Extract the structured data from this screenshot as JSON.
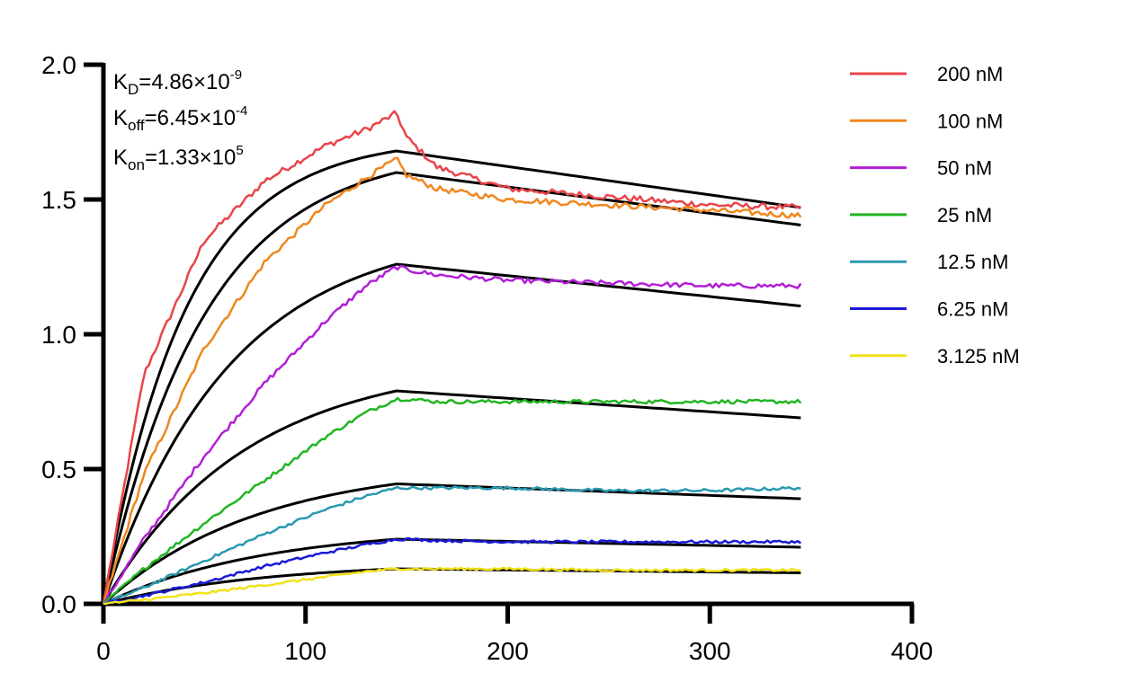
{
  "chart_data": {
    "type": "line",
    "title": "",
    "xlabel": "",
    "ylabel": "",
    "xlim": [
      0,
      400
    ],
    "ylim": [
      0,
      2.0
    ],
    "x_ticks": [
      0,
      100,
      200,
      300,
      400
    ],
    "x_tick_labels": [
      "0",
      "100",
      "200",
      "300",
      "400"
    ],
    "y_ticks": [
      0,
      0.5,
      1.0,
      1.5,
      2.0
    ],
    "y_tick_labels": [
      "0.0",
      "0.5",
      "1.0",
      "1.5",
      "2.0"
    ],
    "grid": false,
    "legend_position": "top-right",
    "annotations": {
      "kd": {
        "base": "K",
        "sub": "D",
        "mid": "=4.86×10",
        "sup": "-9"
      },
      "koff": {
        "base": "K",
        "sub": "off",
        "mid": "=6.45×10",
        "sup": "-4"
      },
      "kon": {
        "base": "K",
        "sub": "on",
        "mid": "=1.33×10",
        "sup": "5"
      }
    },
    "association_end_x": 145,
    "x_end": 345,
    "series": [
      {
        "name": "200 nM",
        "color": "#e8454a",
        "values_at": {
          "x": [
            0,
            20,
            50,
            80,
            110,
            130,
            145,
            150,
            165,
            200,
            250,
            300,
            345
          ],
          "y": [
            0,
            0.85,
            1.35,
            1.57,
            1.7,
            1.76,
            1.82,
            1.73,
            1.62,
            1.54,
            1.51,
            1.48,
            1.47
          ]
        }
      },
      {
        "name": "100 nM",
        "color": "#f0871e",
        "values_at": {
          "x": [
            0,
            20,
            50,
            80,
            110,
            130,
            145,
            150,
            165,
            200,
            250,
            300,
            345
          ],
          "y": [
            0,
            0.48,
            0.95,
            1.27,
            1.48,
            1.58,
            1.65,
            1.59,
            1.54,
            1.5,
            1.48,
            1.46,
            1.44
          ]
        }
      },
      {
        "name": "50 nM",
        "color": "#b21fd6",
        "values_at": {
          "x": [
            0,
            20,
            50,
            80,
            110,
            130,
            145,
            150,
            165,
            200,
            250,
            300,
            345
          ],
          "y": [
            0,
            0.24,
            0.55,
            0.82,
            1.05,
            1.18,
            1.25,
            1.24,
            1.22,
            1.2,
            1.19,
            1.18,
            1.18
          ]
        }
      },
      {
        "name": "25 nM",
        "color": "#21b521",
        "values_at": {
          "x": [
            0,
            20,
            50,
            80,
            110,
            130,
            145,
            150,
            165,
            200,
            250,
            300,
            345
          ],
          "y": [
            0,
            0.13,
            0.3,
            0.46,
            0.62,
            0.71,
            0.76,
            0.76,
            0.75,
            0.75,
            0.75,
            0.75,
            0.75
          ]
        }
      },
      {
        "name": "12.5 nM",
        "color": "#2a99b0",
        "values_at": {
          "x": [
            0,
            20,
            50,
            80,
            110,
            130,
            145,
            150,
            165,
            200,
            250,
            300,
            345
          ],
          "y": [
            0,
            0.06,
            0.16,
            0.26,
            0.35,
            0.4,
            0.43,
            0.43,
            0.43,
            0.43,
            0.42,
            0.42,
            0.43
          ]
        }
      },
      {
        "name": "6.25 nM",
        "color": "#1a1ad6",
        "values_at": {
          "x": [
            0,
            20,
            50,
            80,
            110,
            130,
            145,
            150,
            165,
            200,
            250,
            300,
            345
          ],
          "y": [
            0,
            0.03,
            0.08,
            0.14,
            0.19,
            0.22,
            0.24,
            0.24,
            0.235,
            0.23,
            0.23,
            0.23,
            0.23
          ]
        }
      },
      {
        "name": "3.125 nM",
        "color": "#f2e21a",
        "values_at": {
          "x": [
            0,
            20,
            50,
            80,
            110,
            130,
            145,
            150,
            165,
            200,
            250,
            300,
            345
          ],
          "y": [
            0,
            0.015,
            0.04,
            0.07,
            0.1,
            0.12,
            0.13,
            0.13,
            0.13,
            0.13,
            0.125,
            0.125,
            0.125
          ]
        }
      }
    ],
    "fit_color": "#000000",
    "fits": [
      {
        "peak": 1.68,
        "end": 1.47,
        "assoc_shape": 2.1
      },
      {
        "peak": 1.6,
        "end": 1.405,
        "assoc_shape": 1.35
      },
      {
        "peak": 1.26,
        "end": 1.105,
        "assoc_shape": 0.7
      },
      {
        "peak": 0.79,
        "end": 0.69,
        "assoc_shape": 0.38
      },
      {
        "peak": 0.445,
        "end": 0.39,
        "assoc_shape": 0.2
      },
      {
        "peak": 0.24,
        "end": 0.21,
        "assoc_shape": 0.1
      },
      {
        "peak": 0.13,
        "end": 0.115,
        "assoc_shape": 0.05
      }
    ]
  }
}
